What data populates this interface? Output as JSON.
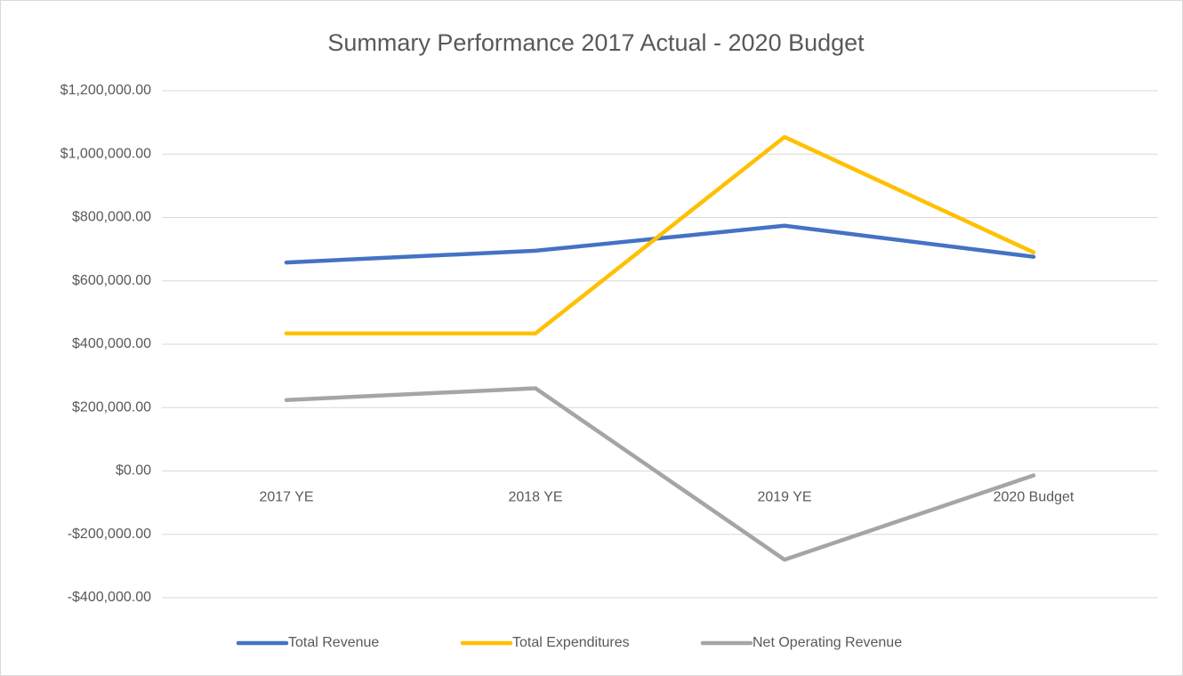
{
  "chart_data": {
    "type": "line",
    "title": "Summary Performance 2017 Actual - 2020 Budget",
    "categories": [
      "2017 YE",
      "2018 YE",
      "2019 YE",
      "2020 Budget"
    ],
    "series": [
      {
        "name": "Total Revenue",
        "color": "#4472c4",
        "values": [
          658000,
          695000,
          774000,
          676000
        ]
      },
      {
        "name": "Total Expenditures",
        "color": "#ffc000",
        "values": [
          434000,
          434000,
          1054000,
          690000
        ]
      },
      {
        "name": "Net Operating Revenue",
        "color": "#a5a5a5",
        "values": [
          224000,
          261000,
          -280000,
          -14000
        ]
      }
    ],
    "ylim": [
      -400000,
      1200000
    ],
    "yticks": [
      {
        "value": -400000,
        "label": "-$400,000.00"
      },
      {
        "value": -200000,
        "label": "-$200,000.00"
      },
      {
        "value": 0,
        "label": "$0.00"
      },
      {
        "value": 200000,
        "label": "$200,000.00"
      },
      {
        "value": 400000,
        "label": "$400,000.00"
      },
      {
        "value": 600000,
        "label": "$600,000.00"
      },
      {
        "value": 800000,
        "label": "$800,000.00"
      },
      {
        "value": 1000000,
        "label": "$1,000,000.00"
      },
      {
        "value": 1200000,
        "label": "$1,200,000.00"
      }
    ],
    "grid": true,
    "legend": "bottom"
  }
}
